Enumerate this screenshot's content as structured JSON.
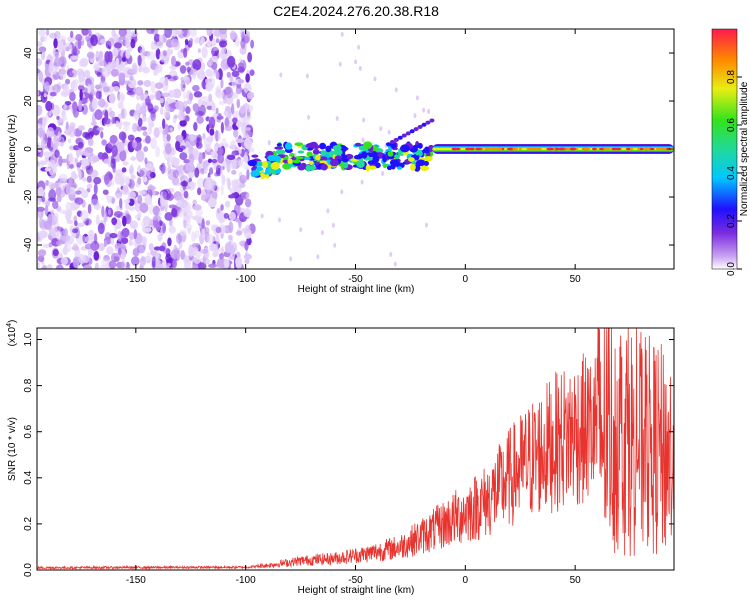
{
  "title": "C2E4.2024.276.20.38.R18",
  "chart_data": [
    {
      "type": "heatmap",
      "xlabel": "Height of straight line (km)",
      "ylabel": "Frequency (Hz)",
      "xlim": [
        -195,
        95
      ],
      "ylim": [
        -50,
        50
      ],
      "xticks": [
        -150,
        -100,
        -50,
        0,
        50
      ],
      "yticks": [
        -40,
        -20,
        0,
        20,
        40
      ],
      "colorbar": {
        "label": "Normalized spectral amplitude",
        "range": [
          0,
          1
        ],
        "ticks": [
          0.0,
          0.2,
          0.4,
          0.6,
          0.8
        ],
        "tick_labels": [
          "0.0",
          "0.2",
          "0.4",
          "0.6",
          "0.8"
        ]
      },
      "features": [
        {
          "x_range": [
            -195,
            -97
          ],
          "y_range": [
            -50,
            50
          ],
          "amplitude": 0.1
        },
        {
          "x_range": [
            -97,
            -15
          ],
          "y_center": -3,
          "amplitude": 0.4
        },
        {
          "x_range": [
            -15,
            95
          ],
          "y_center": 0,
          "amplitude": 0.9
        }
      ]
    },
    {
      "type": "line",
      "xlabel": "Height of straight line (km)",
      "ylabel": "SNR (10 * v/v)",
      "y_scale_label": "(x10",
      "y_scale_exp": "4",
      "y_scale_close": ")",
      "xlim": [
        -195,
        95
      ],
      "ylim": [
        0,
        1.05
      ],
      "xticks": [
        -150,
        -100,
        -50,
        0,
        50
      ],
      "yticks": [
        0.0,
        0.2,
        0.4,
        0.6,
        0.8,
        1.0
      ],
      "series": [
        {
          "color": "#e8332e",
          "trend": [
            {
              "x": -195,
              "y": 0.01
            },
            {
              "x": -100,
              "y": 0.012
            },
            {
              "x": -90,
              "y": 0.02
            },
            {
              "x": -75,
              "y": 0.04
            },
            {
              "x": -60,
              "y": 0.05
            },
            {
              "x": -45,
              "y": 0.07
            },
            {
              "x": -30,
              "y": 0.1
            },
            {
              "x": -15,
              "y": 0.17
            },
            {
              "x": 0,
              "y": 0.25
            },
            {
              "x": 10,
              "y": 0.3
            },
            {
              "x": 20,
              "y": 0.4
            },
            {
              "x": 30,
              "y": 0.48
            },
            {
              "x": 40,
              "y": 0.55
            },
            {
              "x": 50,
              "y": 0.6
            },
            {
              "x": 60,
              "y": 0.62
            },
            {
              "x": 70,
              "y": 0.6
            },
            {
              "x": 80,
              "y": 0.55
            },
            {
              "x": 95,
              "y": 0.5
            }
          ]
        }
      ]
    }
  ]
}
